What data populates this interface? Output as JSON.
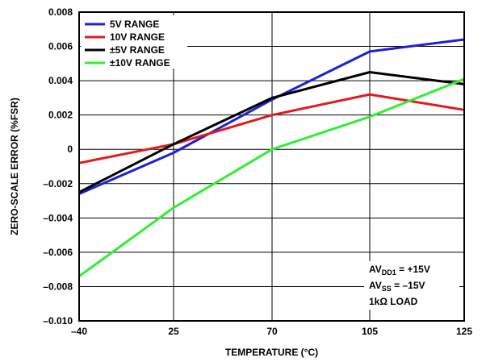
{
  "chart_data": {
    "type": "line",
    "xlabel": "TEMPERATURE (°C)",
    "ylabel": "ZERO-SCALE ERROR (%FSR)",
    "x": [
      -40,
      25,
      70,
      105,
      125
    ],
    "x_tick_labels": [
      "–40",
      "25",
      "70",
      "105",
      "125"
    ],
    "ylim": [
      -0.01,
      0.008
    ],
    "y_ticks": [
      0.008,
      0.006,
      0.004,
      0.002,
      0,
      -0.002,
      -0.004,
      -0.006,
      -0.008,
      -0.01
    ],
    "y_tick_labels": [
      "0.008",
      "0.006",
      "0.004",
      "0.002",
      "0",
      "–0.002",
      "–0.004",
      "–0.006",
      "–0.008",
      "–0.010"
    ],
    "grid": true,
    "legend_position": "top-left",
    "series": [
      {
        "name": "5V RANGE",
        "color": "#1f1fd6",
        "values": [
          -0.0026,
          -0.0002,
          0.0029,
          0.0057,
          0.0064
        ]
      },
      {
        "name": "10V RANGE",
        "color": "#e31a1c",
        "values": [
          -0.0008,
          0.0003,
          0.002,
          0.0032,
          0.0023
        ]
      },
      {
        "name": "±5V RANGE",
        "color": "#000000",
        "values": [
          -0.0025,
          0.0003,
          0.003,
          0.0045,
          0.0038
        ]
      },
      {
        "name": "±10V RANGE",
        "color": "#33ee33",
        "values": [
          -0.0074,
          -0.0034,
          0.0,
          0.0019,
          0.0041
        ]
      }
    ],
    "annotation": {
      "line1_main": "AV",
      "line1_sub": "DD1",
      "line1_rest": " = +15V",
      "line2_main": "AV",
      "line2_sub": "SS",
      "line2_rest": " = –15V",
      "line3": "1kΩ LOAD"
    }
  }
}
